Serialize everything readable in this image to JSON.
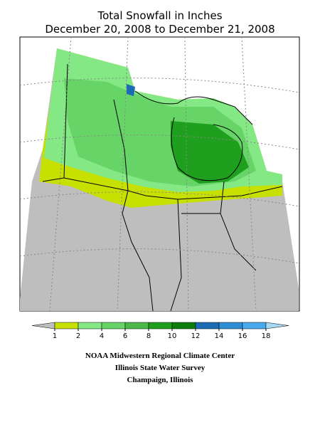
{
  "header": {
    "title": "Total Snowfall in Inches",
    "subtitle": "December 20, 2008 to December 21, 2008"
  },
  "legend": {
    "labels": [
      1,
      2,
      4,
      6,
      8,
      10,
      12,
      14,
      16,
      18
    ],
    "colors": [
      "#bebebe",
      "#c8e000",
      "#84e884",
      "#66d466",
      "#4cb84c",
      "#1ea01e",
      "#0c7c0c",
      "#1c6cb4",
      "#2c8cd4",
      "#48aaec",
      "#a8d8f4"
    ]
  },
  "footer": {
    "lines": [
      "NOAA Midwestern Regional Climate Center",
      "Illinois State Water Survey",
      "Champaign, Illinois"
    ]
  }
}
